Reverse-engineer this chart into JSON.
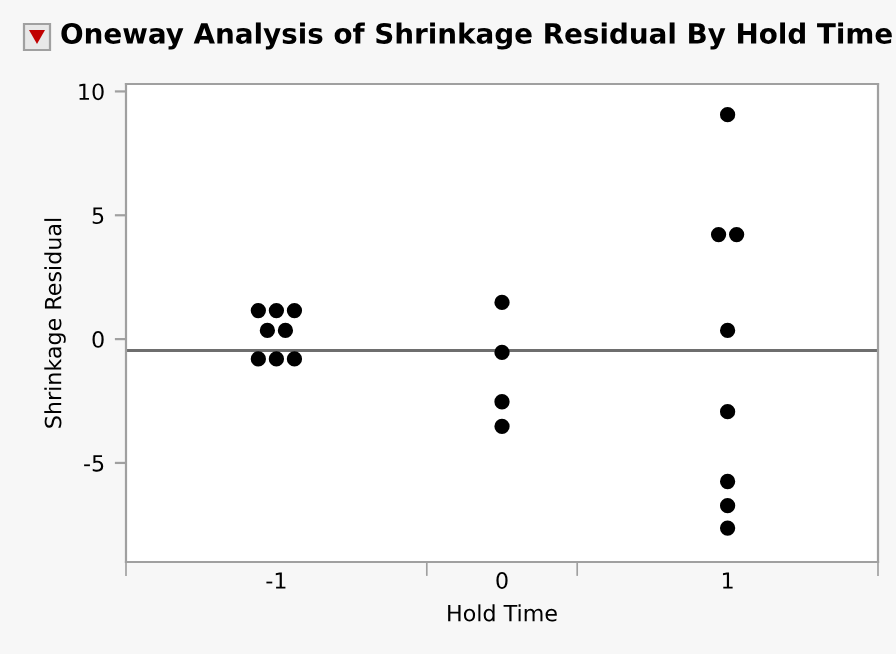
{
  "chart_data": {
    "type": "scatter",
    "title": "Oneway Analysis of Shrinkage Residual By Hold Time",
    "xlabel": "Hold Time",
    "ylabel": "Shrinkage Residual",
    "categories": [
      "-1",
      "0",
      "1"
    ],
    "series": [
      {
        "color": "#000000",
        "x": [
          "-1",
          "-1",
          "-1",
          "-1",
          "-1",
          "-1",
          "-1",
          "-1",
          "0",
          "0",
          "0",
          "0",
          "1",
          "1",
          "1",
          "1",
          "1",
          "1",
          "1",
          "1"
        ],
        "values": [
          1.15,
          1.15,
          1.15,
          0.35,
          0.35,
          -0.8,
          -0.8,
          -0.8,
          1.48,
          -0.54,
          -2.53,
          -3.52,
          9.06,
          4.22,
          4.22,
          0.35,
          -2.93,
          -5.75,
          -6.72,
          -7.63
        ]
      }
    ],
    "ref_lines": [
      {
        "axis": "y",
        "value": -0.46,
        "color": "#6e6e6e"
      }
    ],
    "ylim": [
      -9,
      10.3
    ],
    "yticks": [
      -5,
      0,
      5,
      10
    ],
    "marker": "circle",
    "grid": false,
    "legend": false
  }
}
